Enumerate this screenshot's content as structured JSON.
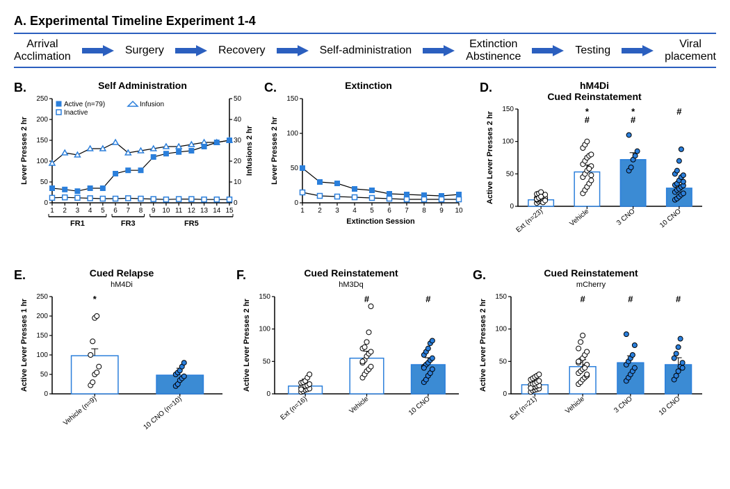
{
  "colors": {
    "blue": "#2b7fdb",
    "barFill": "#3b8bd4",
    "timelineRule": "#2b5fbf",
    "black": "#000000",
    "white": "#ffffff"
  },
  "panelA": {
    "label": "A.",
    "title": "Experimental Timeline Experiment 1-4",
    "items": [
      "Arrival\nAcclimation",
      "Surgery",
      "Recovery",
      "Self-administration",
      "Extinction\nAbstinence",
      "Testing",
      "Viral\nplacement"
    ]
  },
  "panelB": {
    "label": "B.",
    "title": "Self Administration",
    "ylabel": "Lever Presses 2 hr",
    "y2label": "Infusions 2 hr",
    "ylim": [
      0,
      250
    ],
    "ytick": 50,
    "y2lim": [
      0,
      50
    ],
    "y2tick": 10,
    "x": [
      1,
      2,
      3,
      4,
      5,
      6,
      7,
      8,
      9,
      10,
      11,
      12,
      13,
      14,
      15
    ],
    "frGroups": [
      {
        "label": "FR1",
        "from": 1,
        "to": 5
      },
      {
        "label": "FR3",
        "from": 6,
        "to": 8
      },
      {
        "label": "FR5",
        "from": 9,
        "to": 15
      }
    ],
    "legend": {
      "active": "Active (n=79)",
      "inactive": "Inactive",
      "infusion": "Infusion"
    },
    "active": [
      35,
      32,
      28,
      35,
      35,
      70,
      78,
      78,
      110,
      118,
      122,
      125,
      135,
      145,
      150
    ],
    "inactive": [
      12,
      13,
      12,
      11,
      10,
      10,
      11,
      10,
      9,
      8,
      9,
      9,
      8,
      8,
      8
    ],
    "infusion": [
      19,
      24,
      23,
      26,
      26,
      29,
      24,
      25,
      26,
      27,
      27,
      28,
      29,
      29,
      30
    ]
  },
  "panelC": {
    "label": "C.",
    "title": "Extinction",
    "ylabel": "Lever Presses 2 hr",
    "xlabel": "Extinction Session",
    "ylim": [
      0,
      150
    ],
    "ytick": 50,
    "x": [
      1,
      2,
      3,
      4,
      5,
      6,
      7,
      8,
      9,
      10
    ],
    "active": [
      50,
      30,
      28,
      20,
      18,
      13,
      12,
      11,
      10,
      12
    ],
    "inactive": [
      15,
      10,
      9,
      8,
      7,
      6,
      5,
      5,
      5,
      5
    ]
  },
  "panelD": {
    "label": "D.",
    "title": "hM4Di\nCued Reinstatement",
    "ylabel": "Active Lever Presses 2 hr",
    "ylim": [
      0,
      150
    ],
    "ytick": 50,
    "groups": [
      {
        "name": "Ext (n=23)",
        "bar": 10,
        "fill": "open",
        "sig": "",
        "pts": [
          5,
          7,
          8,
          8,
          10,
          10,
          11,
          12,
          12,
          13,
          13,
          14,
          15,
          16,
          18,
          19,
          20,
          22,
          6,
          9,
          11,
          13,
          15
        ]
      },
      {
        "name": "Vehicle",
        "bar": 53,
        "fill": "open",
        "sig": "*\n#",
        "pts": [
          20,
          25,
          30,
          35,
          40,
          45,
          50,
          55,
          60,
          62,
          65,
          70,
          75,
          78,
          80,
          90,
          95,
          100,
          58,
          48
        ]
      },
      {
        "name": "3 CNO",
        "bar": 72,
        "fill": "fill",
        "sig": "*\n#",
        "pts": [
          55,
          60,
          72,
          78,
          85,
          110
        ]
      },
      {
        "name": "10 CNO",
        "bar": 28,
        "fill": "fill",
        "sig": "#",
        "pts": [
          10,
          12,
          15,
          18,
          20,
          22,
          25,
          27,
          30,
          32,
          33,
          35,
          40,
          45,
          48,
          50,
          55,
          70,
          88,
          38
        ]
      }
    ]
  },
  "panelE": {
    "label": "E.",
    "title": "Cued Relapse",
    "subtitle": "hM4Di",
    "ylabel": "Active Lever Presses 1 hr",
    "ylim": [
      0,
      250
    ],
    "ytick": 50,
    "groups": [
      {
        "name": "Vehicle (n=9)",
        "bar": 98,
        "fill": "open",
        "sig": "*",
        "pts": [
          22,
          30,
          50,
          55,
          70,
          100,
          135,
          195,
          200
        ]
      },
      {
        "name": "10 CNO (n=10)",
        "bar": 48,
        "fill": "fill",
        "sig": "",
        "pts": [
          20,
          25,
          35,
          40,
          45,
          50,
          55,
          60,
          70,
          80
        ]
      }
    ]
  },
  "panelF": {
    "label": "F.",
    "title": "Cued Reinstatement",
    "subtitle": "hM3Dq",
    "ylabel": "Active Lever Presses 2 hr",
    "ylim": [
      0,
      150
    ],
    "ytick": 50,
    "groups": [
      {
        "name": "Ext (n=16)",
        "bar": 12,
        "fill": "open",
        "sig": "",
        "pts": [
          3,
          4,
          6,
          7,
          8,
          10,
          11,
          12,
          13,
          15,
          17,
          18,
          20,
          25,
          30,
          7
        ]
      },
      {
        "name": "Vehicle",
        "bar": 55,
        "fill": "open",
        "sig": "#",
        "pts": [
          25,
          30,
          35,
          38,
          42,
          48,
          52,
          58,
          62,
          65,
          70,
          72,
          80,
          95,
          135,
          50
        ]
      },
      {
        "name": "10 CNO",
        "bar": 45,
        "fill": "fill",
        "sig": "#",
        "pts": [
          18,
          22,
          28,
          32,
          38,
          42,
          45,
          48,
          52,
          55,
          60,
          65,
          70,
          78,
          82,
          40
        ]
      }
    ]
  },
  "panelG": {
    "label": "G.",
    "title": "Cued Reinstatement",
    "subtitle": "mCherry",
    "ylabel": "Active Lever Presses 2 hr",
    "ylim": [
      0,
      150
    ],
    "ytick": 50,
    "groups": [
      {
        "name": "Ext (n=21)",
        "bar": 14,
        "fill": "open",
        "sig": "",
        "pts": [
          3,
          5,
          6,
          7,
          8,
          9,
          10,
          11,
          12,
          13,
          14,
          15,
          16,
          18,
          20,
          22,
          24,
          26,
          28,
          30,
          9
        ]
      },
      {
        "name": "Vehicle",
        "bar": 42,
        "fill": "open",
        "sig": "#",
        "pts": [
          15,
          18,
          22,
          25,
          28,
          32,
          35,
          38,
          42,
          45,
          48,
          52,
          55,
          60,
          65,
          70,
          80,
          90,
          40,
          30,
          50
        ]
      },
      {
        "name": "3 CNO",
        "bar": 48,
        "fill": "fill",
        "sig": "#",
        "pts": [
          20,
          25,
          30,
          35,
          40,
          45,
          50,
          55,
          60,
          75,
          92
        ]
      },
      {
        "name": "10 CNO",
        "bar": 45,
        "fill": "fill",
        "sig": "#",
        "pts": [
          22,
          28,
          35,
          42,
          48,
          55,
          62,
          72,
          85,
          40
        ]
      }
    ]
  }
}
